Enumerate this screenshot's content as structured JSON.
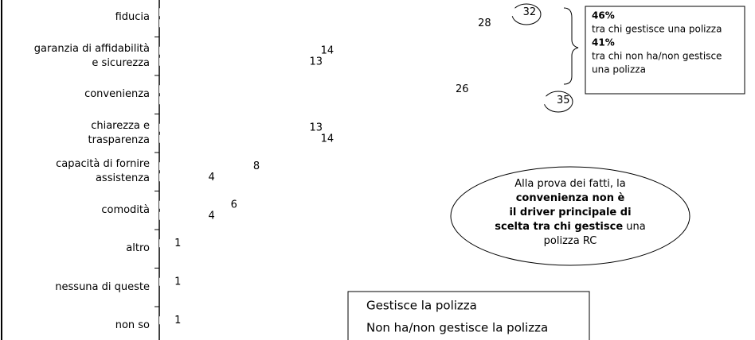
{
  "chart_data": {
    "type": "bar",
    "orientation": "horizontal",
    "categories": [
      "fiducia",
      "garanzia di affidabilità\ne sicurezza",
      "convenienza",
      "chiarezza e\ntrasparenza",
      "capacità di fornire\nassistenza",
      "comodità",
      "altro",
      "nessuna di queste",
      "non so"
    ],
    "series": [
      {
        "name": "Gestisce la polizza",
        "color": "#ffffff",
        "values": [
          32,
          14,
          26,
          13,
          8,
          6,
          1,
          1,
          1
        ]
      },
      {
        "name": "Non ha/non gestisce la polizza",
        "color": "#ffffff",
        "values": [
          28,
          13,
          35,
          14,
          4,
          4,
          null,
          null,
          null
        ]
      }
    ],
    "xlim": [
      0,
      53
    ],
    "box_lines": [
      {
        "text": "46%",
        "bold": true
      },
      {
        "text": "tra chi gestisce una polizza",
        "bold": false
      },
      {
        "text": "41%",
        "bold": true
      },
      {
        "text": "tra chi non ha/non gestisce",
        "bold": false
      },
      {
        "text": "una polizza",
        "bold": false
      }
    ],
    "callout_lines": [
      [
        {
          "text": "Alla prova dei fatti, la",
          "bold": false
        }
      ],
      [
        {
          "text": "convenienza non è",
          "bold": true
        }
      ],
      [
        {
          "text": "il driver principale di",
          "bold": true
        }
      ],
      [
        {
          "text": "scelta tra chi gestisce",
          "bold": true
        },
        {
          "text": " una",
          "bold": false
        }
      ],
      [
        {
          "text": "polizza RC",
          "bold": false
        }
      ]
    ]
  }
}
